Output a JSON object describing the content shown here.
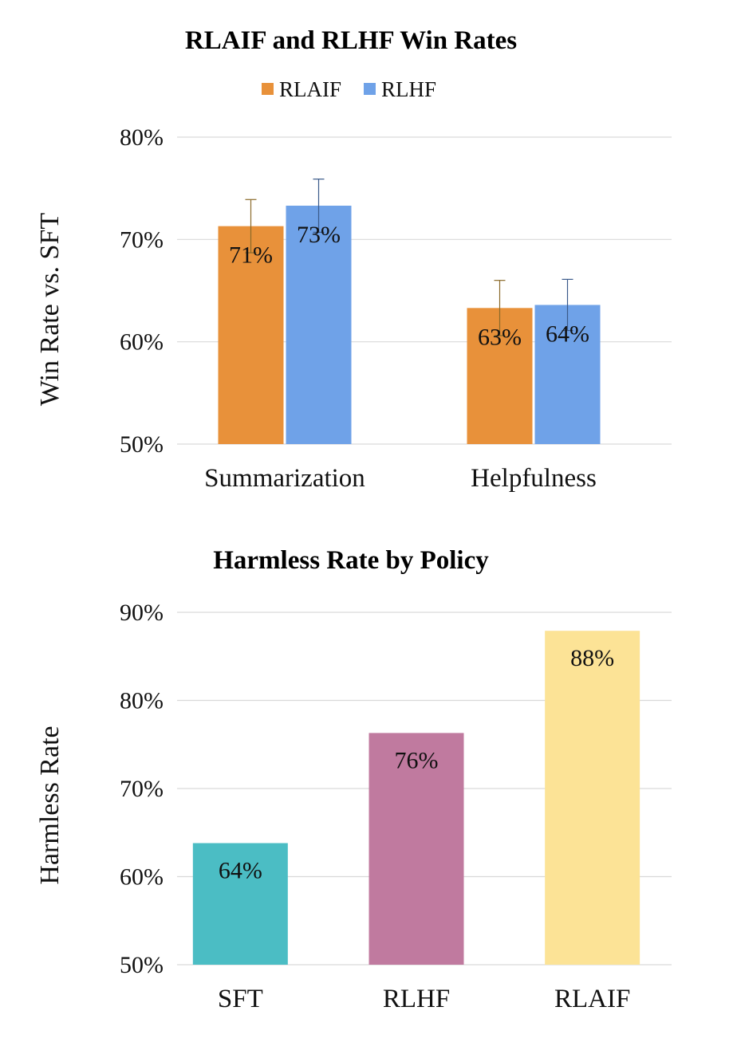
{
  "chart_data": [
    {
      "type": "bar",
      "title": "RLAIF and RLHF Win Rates",
      "ylabel": "Win Rate vs. SFT",
      "xlabel": "",
      "ylim": [
        50,
        80
      ],
      "yticks": [
        "50%",
        "60%",
        "70%",
        "80%"
      ],
      "ytick_values": [
        50,
        60,
        70,
        80
      ],
      "grid": true,
      "legend": "top-center",
      "categories": [
        "Summarization",
        "Helpfulness"
      ],
      "series": [
        {
          "name": "RLAIF",
          "color": "#E8913A",
          "values": [
            71.3,
            63.3
          ],
          "labels": [
            "71%",
            "63%"
          ],
          "error_upper": [
            73.9,
            66.0
          ],
          "error_lower": [
            68.7,
            60.6
          ],
          "error_color": "#8a6a2a"
        },
        {
          "name": "RLHF",
          "color": "#6FA2E8",
          "values": [
            73.3,
            63.6
          ],
          "labels": [
            "73%",
            "64%"
          ],
          "error_upper": [
            75.9,
            66.1
          ],
          "error_lower": [
            70.7,
            61.1
          ],
          "error_color": "#3a5a8a"
        }
      ]
    },
    {
      "type": "bar",
      "title": "Harmless Rate by Policy",
      "ylabel": "Harmless Rate",
      "xlabel": "",
      "ylim": [
        50,
        90
      ],
      "yticks": [
        "50%",
        "60%",
        "70%",
        "80%",
        "90%"
      ],
      "ytick_values": [
        50,
        60,
        70,
        80,
        90
      ],
      "grid": true,
      "categories": [
        "SFT",
        "RLHF",
        "RLAIF"
      ],
      "values": [
        63.8,
        76.3,
        87.9
      ],
      "labels": [
        "64%",
        "76%",
        "88%"
      ],
      "colors": [
        "#4BBDC4",
        "#C07A9F",
        "#FCE396"
      ]
    }
  ]
}
